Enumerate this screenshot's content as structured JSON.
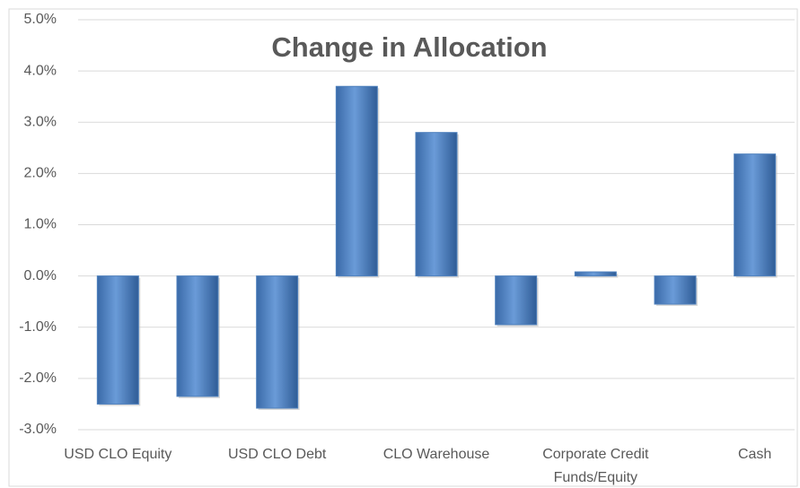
{
  "chart_data": {
    "type": "bar",
    "title": "Change in Allocation",
    "categories": [
      "USD CLO Equity",
      null,
      "USD CLO Debt",
      null,
      "CLO Warehouse",
      null,
      "Corporate Credit Funds/Equity",
      null,
      "Cash"
    ],
    "values": [
      -2.5,
      -2.35,
      -2.58,
      3.7,
      2.8,
      -0.95,
      0.08,
      -0.55,
      2.38
    ],
    "color": "#4f81bd",
    "ylim": [
      -3,
      5
    ],
    "yticks": [
      {
        "value": -3,
        "label": "-3.0%"
      },
      {
        "value": -2,
        "label": "-2.0%"
      },
      {
        "value": -1,
        "label": "-1.0%"
      },
      {
        "value": 0,
        "label": "0.0%"
      },
      {
        "value": 1,
        "label": "1.0%"
      },
      {
        "value": 2,
        "label": "2.0%"
      },
      {
        "value": 3,
        "label": "3.0%"
      },
      {
        "value": 4,
        "label": "4.0%"
      },
      {
        "value": 5,
        "label": "5.0%"
      }
    ],
    "grid": true
  }
}
